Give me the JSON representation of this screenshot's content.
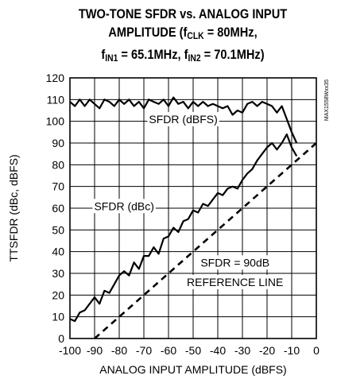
{
  "chart_data": {
    "type": "line",
    "title": {
      "line1": "TWO-TONE SFDR vs. ANALOG INPUT",
      "line2_pre": "AMPLITUDE (f",
      "line2_sub": "CLK",
      "line2_post": " = 80MHz,",
      "line3_a": "f",
      "line3_a_sub": "IN1",
      "line3_b": " = 65.1MHz, f",
      "line3_b_sub": "IN2",
      "line3_c": " = 70.1MHz)"
    },
    "xlabel": "ANALOG INPUT AMPLITUDE (dBFS)",
    "ylabel": "TTSFDR (dBc, dBFS)",
    "xlim": [
      -100,
      0
    ],
    "ylim": [
      0,
      120
    ],
    "x_ticks": [
      "-100",
      "-90",
      "-80",
      "-70",
      "-60",
      "-50",
      "-40",
      "-30",
      "-20",
      "-10",
      "0"
    ],
    "y_ticks": [
      "0",
      "10",
      "20",
      "30",
      "40",
      "50",
      "60",
      "70",
      "80",
      "90",
      "100",
      "110",
      "120"
    ],
    "grid": true,
    "side_code": "MAX1558Wxx35",
    "series": [
      {
        "name": "SFDR (dBFS)",
        "style": "solid",
        "x": [
          -100,
          -98,
          -96,
          -94,
          -92,
          -90,
          -88,
          -86,
          -84,
          -82,
          -80,
          -78,
          -76,
          -74,
          -72,
          -70,
          -68,
          -66,
          -64,
          -62,
          -60,
          -58,
          -56,
          -54,
          -52,
          -50,
          -48,
          -46,
          -44,
          -42,
          -40,
          -38,
          -36,
          -34,
          -32,
          -30,
          -28,
          -26,
          -24,
          -22,
          -20,
          -18,
          -16,
          -14,
          -12,
          -10,
          -8
        ],
        "y": [
          109,
          107,
          110,
          107,
          110,
          108,
          106,
          110,
          109,
          107,
          110,
          108,
          110,
          107,
          109,
          106,
          110,
          109,
          108,
          110,
          107,
          111,
          108,
          109,
          106,
          109,
          107,
          109,
          107,
          108,
          107,
          106,
          107,
          103,
          105,
          104,
          108,
          109,
          107,
          109,
          108,
          107,
          104,
          107,
          101,
          95,
          90
        ]
      },
      {
        "name": "SFDR (dBc)",
        "style": "solid",
        "x": [
          -100,
          -98,
          -96,
          -94,
          -92,
          -90,
          -88,
          -86,
          -84,
          -82,
          -80,
          -78,
          -76,
          -74,
          -72,
          -70,
          -68,
          -66,
          -64,
          -62,
          -60,
          -58,
          -56,
          -54,
          -52,
          -50,
          -48,
          -46,
          -44,
          -42,
          -40,
          -38,
          -36,
          -34,
          -32,
          -30,
          -28,
          -26,
          -24,
          -22,
          -20,
          -18,
          -16,
          -14,
          -12,
          -10,
          -8
        ],
        "y": [
          9,
          8,
          12,
          13,
          16,
          19,
          16,
          22,
          21,
          25,
          29,
          31,
          29,
          35,
          32,
          38,
          38,
          42,
          39,
          46,
          47,
          51,
          49,
          54,
          55,
          59,
          58,
          62,
          61,
          64,
          67,
          66,
          69,
          70,
          69,
          73,
          76,
          78,
          82,
          85,
          88,
          90,
          87,
          90,
          94,
          88,
          84
        ]
      },
      {
        "name": "SFDR = 90dB REFERENCE LINE",
        "style": "dashed",
        "x": [
          -90,
          0
        ],
        "y": [
          0,
          90
        ]
      }
    ],
    "annotations": [
      {
        "text": "SFDR (dBFS)",
        "x": -54,
        "y": 101
      },
      {
        "text": "SFDR (dBc)",
        "x": -78,
        "y": 61
      },
      {
        "text": "SFDR = 90dB",
        "x": -33,
        "y": 35
      },
      {
        "text": "REFERENCE LINE",
        "x": -33,
        "y": 26
      }
    ]
  }
}
